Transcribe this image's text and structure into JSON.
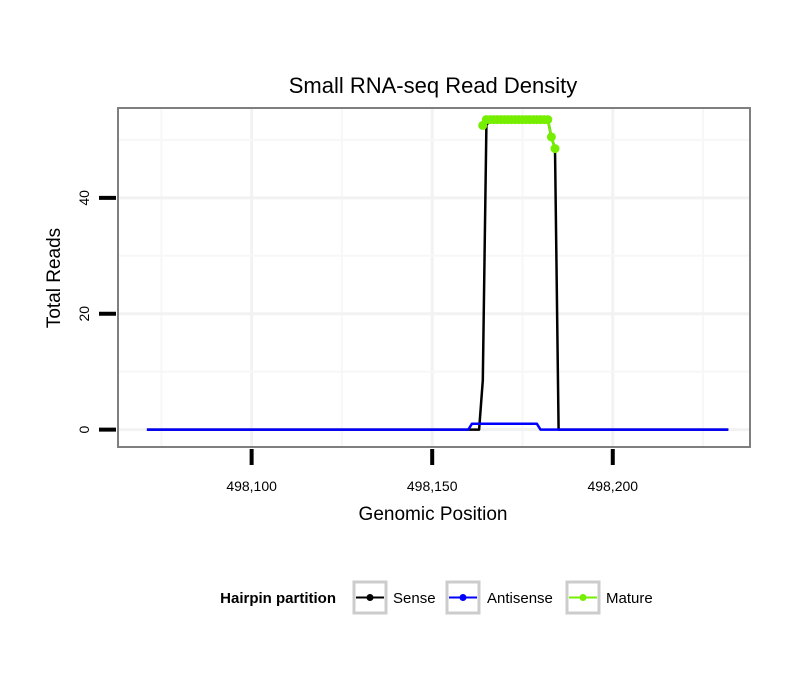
{
  "chart_data": {
    "type": "line",
    "title": "Small RNA-seq Read Density",
    "xlabel": "Genomic Position",
    "ylabel": "Total Reads",
    "xlim": [
      498063,
      498238
    ],
    "ylim": [
      -3,
      55.5
    ],
    "x_ticks": [
      {
        "value": 498100,
        "label": "498,100"
      },
      {
        "value": 498150,
        "label": "498,150"
      },
      {
        "value": 498200,
        "label": "498,200"
      }
    ],
    "y_ticks": [
      {
        "value": 0,
        "label": "0"
      },
      {
        "value": 20,
        "label": "20"
      },
      {
        "value": 40,
        "label": "40"
      }
    ],
    "grid": true,
    "legend": {
      "title": "Hairpin partition",
      "position": "bottom"
    },
    "series": [
      {
        "name": "Sense",
        "color": "#000000",
        "x": [
          498071,
          498163,
          498164,
          498165,
          498166,
          498170,
          498175,
          498180,
          498182,
          498183,
          498184,
          498185,
          498232
        ],
        "values": [
          0,
          0,
          8.5,
          52.5,
          53.5,
          53.5,
          53.5,
          53.5,
          53.5,
          50.5,
          48.5,
          0,
          0
        ]
      },
      {
        "name": "Antisense",
        "color": "#0000ff",
        "x": [
          498071,
          498160,
          498161,
          498170,
          498175,
          498179,
          498180,
          498181,
          498232
        ],
        "values": [
          0,
          0,
          1,
          1,
          1,
          1,
          0,
          0,
          0
        ]
      },
      {
        "name": "Mature",
        "color": "#76ee00",
        "x": [
          498164,
          498165,
          498166,
          498167,
          498168,
          498169,
          498170,
          498171,
          498172,
          498173,
          498174,
          498175,
          498176,
          498177,
          498178,
          498179,
          498180,
          498181,
          498182,
          498183,
          498184
        ],
        "values": [
          52.5,
          53.5,
          53.5,
          53.5,
          53.5,
          53.5,
          53.5,
          53.5,
          53.5,
          53.5,
          53.5,
          53.5,
          53.5,
          53.5,
          53.5,
          53.5,
          53.5,
          53.5,
          53.5,
          50.5,
          48.5
        ]
      }
    ]
  }
}
